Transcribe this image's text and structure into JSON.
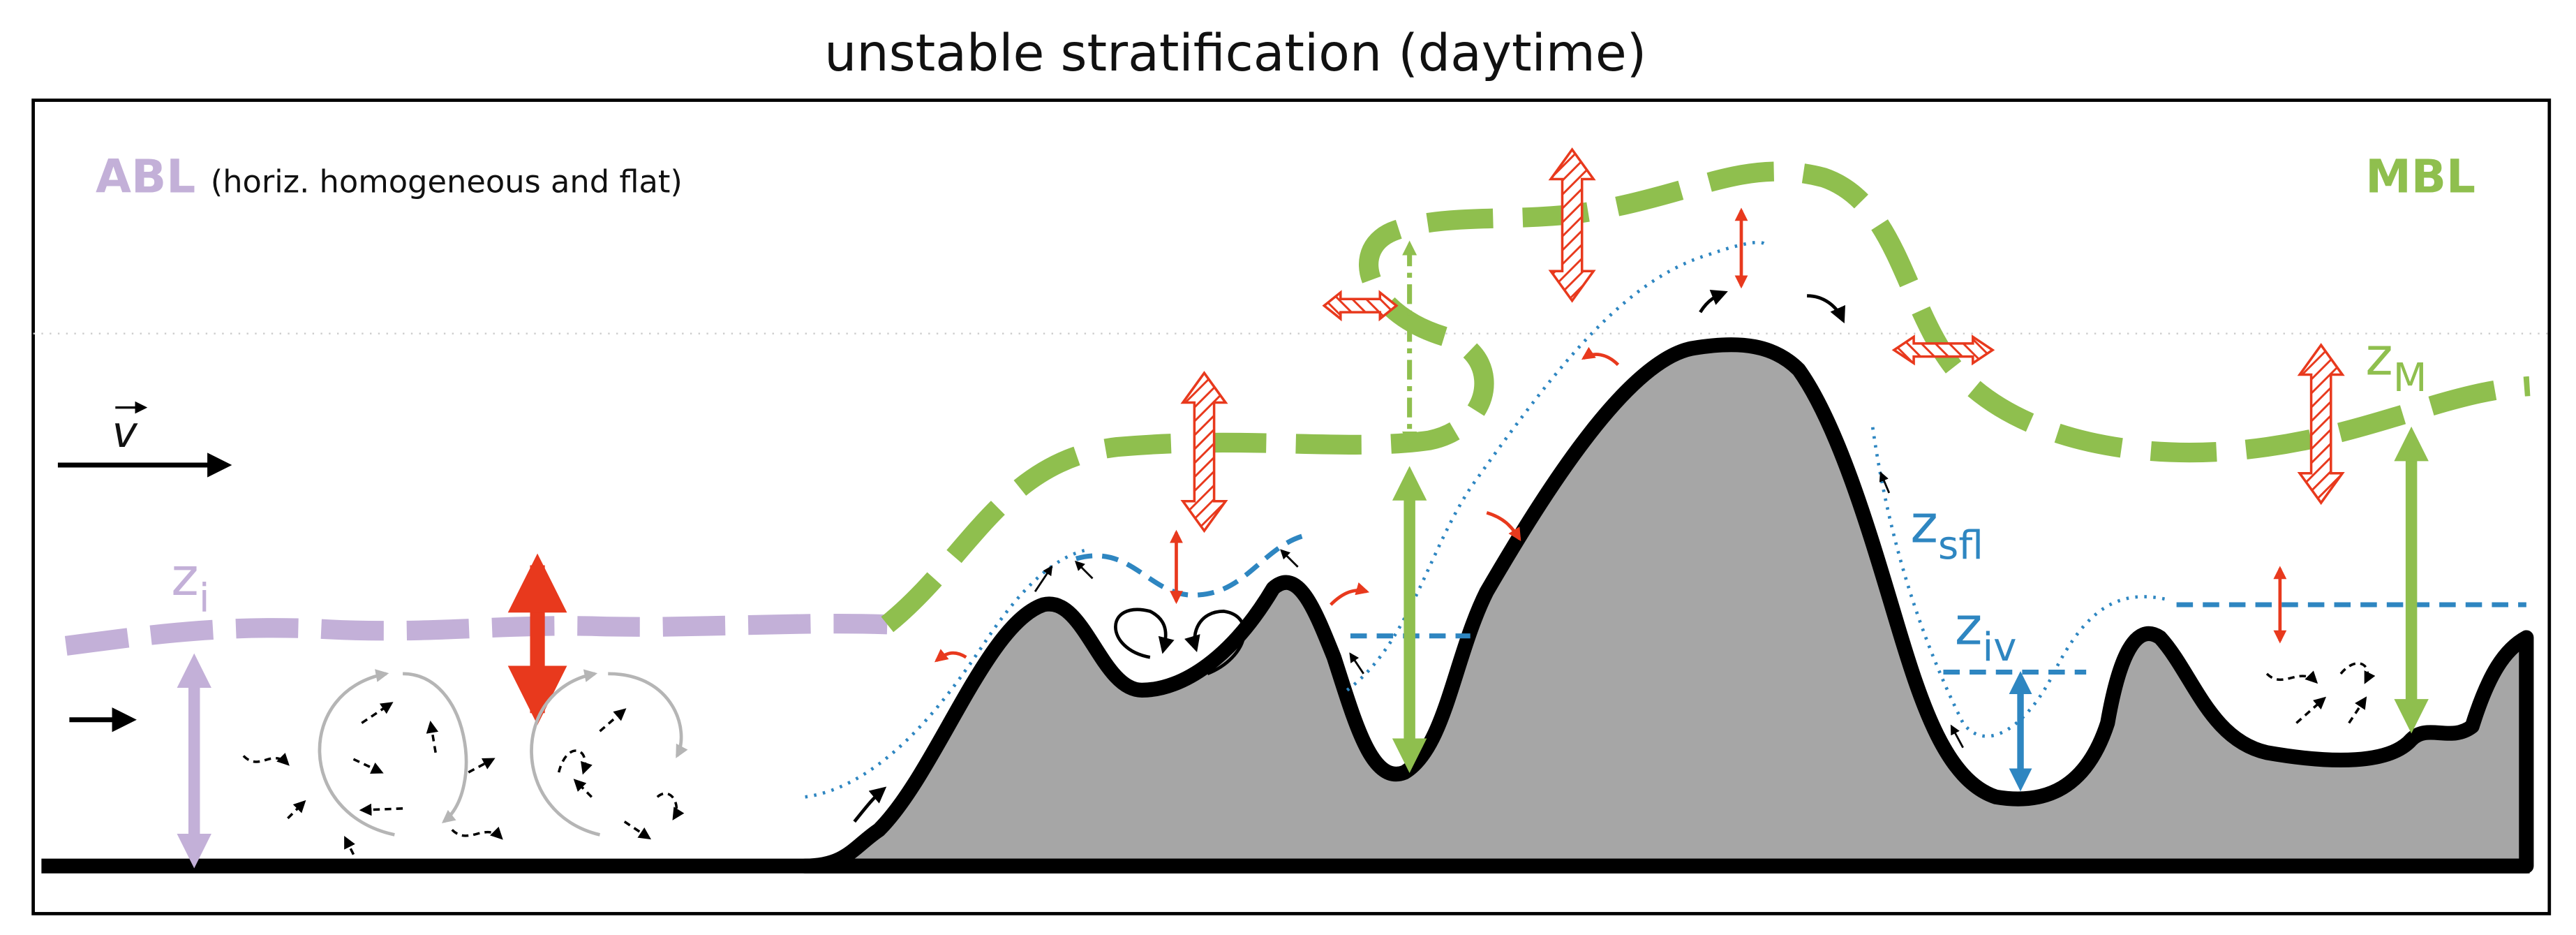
{
  "title": "unstable stratification (daytime)",
  "labels": {
    "abl": "ABL",
    "abl_note": "(horiz. homogeneous and flat)",
    "mbl": "MBL",
    "v": "v",
    "zi": {
      "main": "z",
      "sub": "i"
    },
    "zm": {
      "main": "z",
      "sub": "M"
    },
    "zsfl": {
      "main": "z",
      "sub": "sfl"
    },
    "ziv": {
      "main": "z",
      "sub": "iv"
    }
  }
}
